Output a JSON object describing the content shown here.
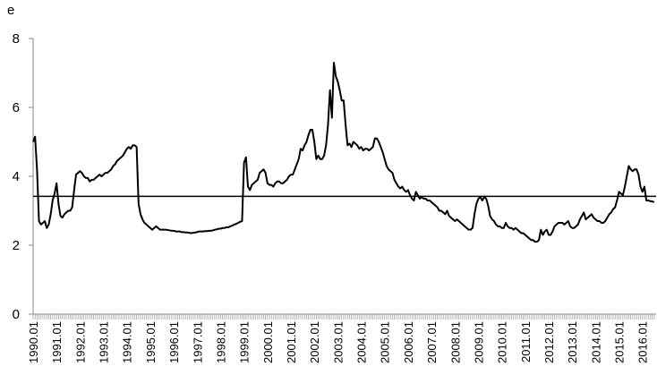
{
  "chart_data": {
    "type": "line",
    "y_label": "e",
    "categories": [
      "1990.01",
      null,
      null,
      null,
      null,
      null,
      null,
      null,
      null,
      null,
      null,
      null,
      "1991.01",
      null,
      null,
      null,
      null,
      null,
      null,
      null,
      null,
      null,
      null,
      null,
      "1992.01",
      null,
      null,
      null,
      null,
      null,
      null,
      null,
      null,
      null,
      null,
      null,
      "1993.01",
      null,
      null,
      null,
      null,
      null,
      null,
      null,
      null,
      null,
      null,
      null,
      "1994.01",
      null,
      null,
      null,
      null,
      null,
      null,
      null,
      null,
      null,
      null,
      null,
      "1995.01",
      null,
      null,
      null,
      null,
      null,
      null,
      null,
      null,
      null,
      null,
      null,
      "1996.01",
      null,
      null,
      null,
      null,
      null,
      null,
      null,
      null,
      null,
      null,
      null,
      "1997.01",
      null,
      null,
      null,
      null,
      null,
      null,
      null,
      null,
      null,
      null,
      null,
      "1998.01",
      null,
      null,
      null,
      null,
      null,
      null,
      null,
      null,
      null,
      null,
      null,
      "1999.01",
      null,
      null,
      null,
      null,
      null,
      null,
      null,
      null,
      null,
      null,
      null,
      "2000.01",
      null,
      null,
      null,
      null,
      null,
      null,
      null,
      null,
      null,
      null,
      null,
      "2001.01",
      null,
      null,
      null,
      null,
      null,
      null,
      null,
      null,
      null,
      null,
      null,
      "2002.01",
      null,
      null,
      null,
      null,
      null,
      null,
      null,
      null,
      null,
      null,
      null,
      "2003.01",
      null,
      null,
      null,
      null,
      null,
      null,
      null,
      null,
      null,
      null,
      null,
      "2004.01",
      null,
      null,
      null,
      null,
      null,
      null,
      null,
      null,
      null,
      null,
      null,
      "2005.01",
      null,
      null,
      null,
      null,
      null,
      null,
      null,
      null,
      null,
      null,
      null,
      "2006.01",
      null,
      null,
      null,
      null,
      null,
      null,
      null,
      null,
      null,
      null,
      null,
      "2007.01",
      null,
      null,
      null,
      null,
      null,
      null,
      null,
      null,
      null,
      null,
      null,
      "2008.01",
      null,
      null,
      null,
      null,
      null,
      null,
      null,
      null,
      null,
      null,
      null,
      "2009.01",
      null,
      null,
      null,
      null,
      null,
      null,
      null,
      null,
      null,
      null,
      null,
      "2010.01",
      null,
      null,
      null,
      null,
      null,
      null,
      null,
      null,
      null,
      null,
      null,
      "2011.01",
      null,
      null,
      null,
      null,
      null,
      null,
      null,
      null,
      null,
      null,
      null,
      "2012.01",
      null,
      null,
      null,
      null,
      null,
      null,
      null,
      null,
      null,
      null,
      null,
      "2013.01",
      null,
      null,
      null,
      null,
      null,
      null,
      null,
      null,
      null,
      null,
      null,
      "2014.01",
      null,
      null,
      null,
      null,
      null,
      null,
      null,
      null,
      null,
      null,
      null,
      "2015.01",
      null,
      null,
      null,
      null,
      null,
      null,
      null,
      null,
      null,
      null,
      null,
      "2016.01",
      null,
      null,
      null,
      null,
      null,
      null
    ],
    "values": [
      5.0,
      5.15,
      4.2,
      2.7,
      2.6,
      2.65,
      2.7,
      2.5,
      2.6,
      2.9,
      3.3,
      3.5,
      3.8,
      3.2,
      2.85,
      2.8,
      2.9,
      2.95,
      3.0,
      3.0,
      3.1,
      3.6,
      4.05,
      4.1,
      4.15,
      4.1,
      4.0,
      3.95,
      3.95,
      3.85,
      3.9,
      3.9,
      3.95,
      4.0,
      4.05,
      4.0,
      4.05,
      4.1,
      4.1,
      4.15,
      4.2,
      4.3,
      4.35,
      4.45,
      4.5,
      4.55,
      4.6,
      4.7,
      4.8,
      4.85,
      4.8,
      4.9,
      4.9,
      4.85,
      3.2,
      2.9,
      2.75,
      2.65,
      2.6,
      2.55,
      2.5,
      2.45,
      2.5,
      2.55,
      2.5,
      2.45,
      2.45,
      2.45,
      2.45,
      2.44,
      2.43,
      2.42,
      2.42,
      2.4,
      2.4,
      2.4,
      2.38,
      2.38,
      2.37,
      2.37,
      2.36,
      2.35,
      2.36,
      2.37,
      2.38,
      2.4,
      2.4,
      2.4,
      2.41,
      2.41,
      2.42,
      2.42,
      2.43,
      2.45,
      2.46,
      2.48,
      2.48,
      2.5,
      2.5,
      2.52,
      2.52,
      2.55,
      2.57,
      2.6,
      2.62,
      2.65,
      2.68,
      2.7,
      4.4,
      4.55,
      3.7,
      3.6,
      3.75,
      3.8,
      3.85,
      3.9,
      4.1,
      4.15,
      4.2,
      4.1,
      3.8,
      3.75,
      3.75,
      3.7,
      3.8,
      3.85,
      3.85,
      3.8,
      3.8,
      3.85,
      3.9,
      4.0,
      4.05,
      4.05,
      4.2,
      4.35,
      4.5,
      4.8,
      4.75,
      4.9,
      5.0,
      5.2,
      5.35,
      5.35,
      5.0,
      4.5,
      4.6,
      4.5,
      4.5,
      4.6,
      4.9,
      5.5,
      6.5,
      5.7,
      7.3,
      6.9,
      6.75,
      6.5,
      6.2,
      6.2,
      5.5,
      4.9,
      4.95,
      4.85,
      5.0,
      4.95,
      4.9,
      4.8,
      4.85,
      4.75,
      4.8,
      4.8,
      4.75,
      4.8,
      4.85,
      5.1,
      5.1,
      5.0,
      4.85,
      4.7,
      4.5,
      4.3,
      4.2,
      4.15,
      4.1,
      3.9,
      3.8,
      3.7,
      3.65,
      3.7,
      3.6,
      3.55,
      3.6,
      3.45,
      3.35,
      3.3,
      3.55,
      3.45,
      3.35,
      3.4,
      3.35,
      3.35,
      3.3,
      3.3,
      3.25,
      3.2,
      3.15,
      3.1,
      3.0,
      3.0,
      2.95,
      2.9,
      3.0,
      2.85,
      2.8,
      2.75,
      2.7,
      2.75,
      2.7,
      2.65,
      2.6,
      2.55,
      2.5,
      2.45,
      2.45,
      2.5,
      2.9,
      3.2,
      3.35,
      3.4,
      3.3,
      3.4,
      3.35,
      3.15,
      2.85,
      2.75,
      2.7,
      2.6,
      2.55,
      2.55,
      2.5,
      2.5,
      2.65,
      2.55,
      2.5,
      2.5,
      2.45,
      2.5,
      2.45,
      2.4,
      2.35,
      2.35,
      2.3,
      2.25,
      2.2,
      2.15,
      2.15,
      2.1,
      2.1,
      2.15,
      2.45,
      2.3,
      2.4,
      2.45,
      2.3,
      2.3,
      2.4,
      2.55,
      2.6,
      2.65,
      2.65,
      2.65,
      2.6,
      2.65,
      2.7,
      2.55,
      2.5,
      2.5,
      2.55,
      2.6,
      2.75,
      2.85,
      2.95,
      2.75,
      2.8,
      2.85,
      2.9,
      2.8,
      2.75,
      2.7,
      2.7,
      2.65,
      2.65,
      2.7,
      2.8,
      2.9,
      2.95,
      3.05,
      3.1,
      3.3,
      3.55,
      3.5,
      3.45,
      3.7,
      4.0,
      4.3,
      4.2,
      4.15,
      4.2,
      4.2,
      4.05,
      3.7,
      3.55,
      3.7,
      3.3,
      3.3,
      3.28,
      3.27,
      3.25
    ],
    "color": "#000000",
    "reference_line": 3.42,
    "ylim": [
      0,
      8
    ],
    "yticks": [
      0,
      2,
      4,
      6,
      8
    ]
  }
}
